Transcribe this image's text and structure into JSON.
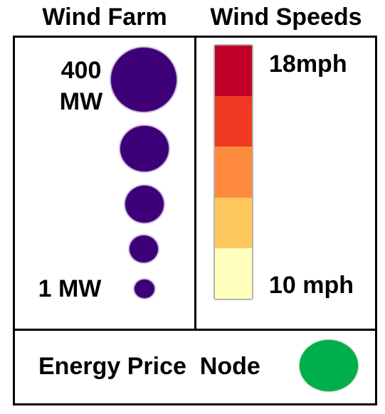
{
  "legend": {
    "wind_farm": {
      "title": "Wind Farm",
      "max_label_line1": "400",
      "max_label_line2": "MW",
      "min_label": "1 MW",
      "dot_color": "#3e0078",
      "size_steps_mw": [
        400,
        null,
        null,
        null,
        1
      ]
    },
    "wind_speeds": {
      "title": "Wind Speeds",
      "high_label": "18mph",
      "low_label": "10 mph",
      "colors_high_to_low": [
        "#c00028",
        "#ef3923",
        "#fd8a3c",
        "#fec75c",
        "#ffffbd"
      ]
    },
    "energy_price": {
      "label": "Energy Price  Node",
      "node_color": "#00ae4b"
    }
  }
}
